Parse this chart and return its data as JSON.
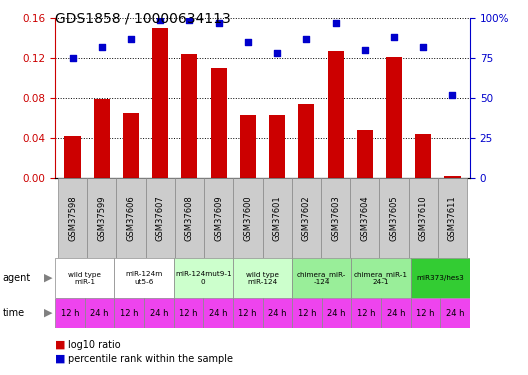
{
  "title": "GDS1858 / 10000634113",
  "samples": [
    "GSM37598",
    "GSM37599",
    "GSM37606",
    "GSM37607",
    "GSM37608",
    "GSM37609",
    "GSM37600",
    "GSM37601",
    "GSM37602",
    "GSM37603",
    "GSM37604",
    "GSM37605",
    "GSM37610",
    "GSM37611"
  ],
  "log10_ratio": [
    0.042,
    0.079,
    0.065,
    0.15,
    0.124,
    0.11,
    0.063,
    0.063,
    0.074,
    0.127,
    0.048,
    0.121,
    0.044,
    0.002
  ],
  "percentile_rank": [
    75,
    82,
    87,
    99,
    99,
    97,
    85,
    78,
    87,
    97,
    80,
    88,
    82,
    52
  ],
  "bar_color": "#cc0000",
  "dot_color": "#0000cc",
  "ylim_left": [
    0,
    0.16
  ],
  "ylim_right": [
    0,
    100
  ],
  "yticks_left": [
    0,
    0.04,
    0.08,
    0.12,
    0.16
  ],
  "yticks_right": [
    0,
    25,
    50,
    75,
    100
  ],
  "agents": [
    {
      "label": "wild type\nmiR-1",
      "start": 0,
      "end": 2,
      "color": "#ffffff"
    },
    {
      "label": "miR-124m\nut5-6",
      "start": 2,
      "end": 4,
      "color": "#ffffff"
    },
    {
      "label": "miR-124mut9-1\n0",
      "start": 4,
      "end": 6,
      "color": "#ccffcc"
    },
    {
      "label": "wild type\nmiR-124",
      "start": 6,
      "end": 8,
      "color": "#ccffcc"
    },
    {
      "label": "chimera_miR-\n-124",
      "start": 8,
      "end": 10,
      "color": "#99ee99"
    },
    {
      "label": "chimera_miR-1\n24-1",
      "start": 10,
      "end": 12,
      "color": "#99ee99"
    },
    {
      "label": "miR373/hes3",
      "start": 12,
      "end": 14,
      "color": "#33cc33"
    }
  ],
  "time_labels": [
    "12 h",
    "24 h",
    "12 h",
    "24 h",
    "12 h",
    "24 h",
    "12 h",
    "24 h",
    "12 h",
    "24 h",
    "12 h",
    "24 h",
    "12 h",
    "24 h"
  ],
  "time_color": "#ee44ee",
  "sample_bg_color": "#cccccc",
  "border_color": "#888888",
  "legend_bar_label": "log10 ratio",
  "legend_dot_label": "percentile rank within the sample",
  "agent_label": "agent",
  "time_label": "time"
}
